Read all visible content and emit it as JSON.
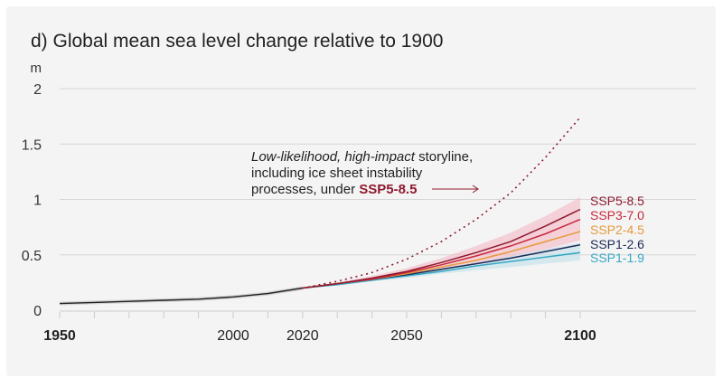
{
  "chart_data": {
    "type": "line",
    "title": "d) Global mean sea level change relative to 1900",
    "ylabel": "m",
    "xlim": [
      1950,
      2100
    ],
    "ylim": [
      0,
      2
    ],
    "yticks": [
      0,
      0.5,
      1,
      1.5,
      2
    ],
    "ytick_labels": [
      "0",
      "0.5",
      "1",
      "1.5",
      "2"
    ],
    "xtick_labels": [
      {
        "value": 1950,
        "label": "1950",
        "bold": true
      },
      {
        "value": 2000,
        "label": "2000",
        "bold": false
      },
      {
        "value": 2020,
        "label": "2020",
        "bold": false
      },
      {
        "value": 2050,
        "label": "2050",
        "bold": false
      },
      {
        "value": 2100,
        "label": "2100",
        "bold": true
      }
    ],
    "grid": true,
    "historical": {
      "color": "#222222",
      "x": [
        1950,
        1960,
        1970,
        1980,
        1990,
        2000,
        2010,
        2020
      ],
      "y": [
        0.06,
        0.07,
        0.08,
        0.09,
        0.1,
        0.12,
        0.15,
        0.2
      ]
    },
    "scenario_x": [
      2020,
      2030,
      2040,
      2050,
      2060,
      2070,
      2080,
      2090,
      2100
    ],
    "series": [
      {
        "name": "SSP5-8.5",
        "color": "#8e1a2e",
        "y": [
          0.2,
          0.24,
          0.29,
          0.35,
          0.43,
          0.52,
          0.62,
          0.76,
          0.91
        ]
      },
      {
        "name": "SSP3-7.0",
        "color": "#c8283d",
        "y": [
          0.2,
          0.24,
          0.28,
          0.34,
          0.41,
          0.49,
          0.58,
          0.69,
          0.82
        ]
      },
      {
        "name": "SSP2-4.5",
        "color": "#e69a3b",
        "y": [
          0.2,
          0.24,
          0.28,
          0.33,
          0.39,
          0.45,
          0.53,
          0.62,
          0.71
        ]
      },
      {
        "name": "SSP1-2.6",
        "color": "#1d2a58",
        "y": [
          0.2,
          0.24,
          0.28,
          0.32,
          0.37,
          0.42,
          0.47,
          0.53,
          0.59
        ]
      },
      {
        "name": "SSP1-1.9",
        "color": "#35a8c4",
        "y": [
          0.2,
          0.23,
          0.27,
          0.31,
          0.35,
          0.4,
          0.44,
          0.48,
          0.52
        ]
      }
    ],
    "bands": [
      {
        "scenario": "SSP5-8.5",
        "color": "#f4b8c4",
        "low": [
          0.2,
          0.23,
          0.27,
          0.31,
          0.36,
          0.42,
          0.48,
          0.55,
          0.63
        ],
        "high": [
          0.2,
          0.25,
          0.31,
          0.38,
          0.47,
          0.58,
          0.7,
          0.85,
          1.02
        ]
      },
      {
        "scenario": "SSP1-1.9",
        "color": "#bfe0ea",
        "low": [
          0.2,
          0.22,
          0.26,
          0.29,
          0.33,
          0.36,
          0.39,
          0.42,
          0.45
        ],
        "high": [
          0.2,
          0.24,
          0.28,
          0.33,
          0.38,
          0.43,
          0.49,
          0.55,
          0.61
        ]
      }
    ],
    "storyline": {
      "color": "#8e1a2e",
      "style": "dotted",
      "y": [
        0.2,
        0.26,
        0.34,
        0.46,
        0.62,
        0.82,
        1.06,
        1.38,
        1.74
      ]
    },
    "annotation": {
      "line1_italic": "Low-likelihood, high-impact",
      "line1_rest": " storyline,",
      "line2": "including ice sheet instability",
      "line3": "processes, under ",
      "line3_bold": "SSP5-8.5"
    }
  }
}
